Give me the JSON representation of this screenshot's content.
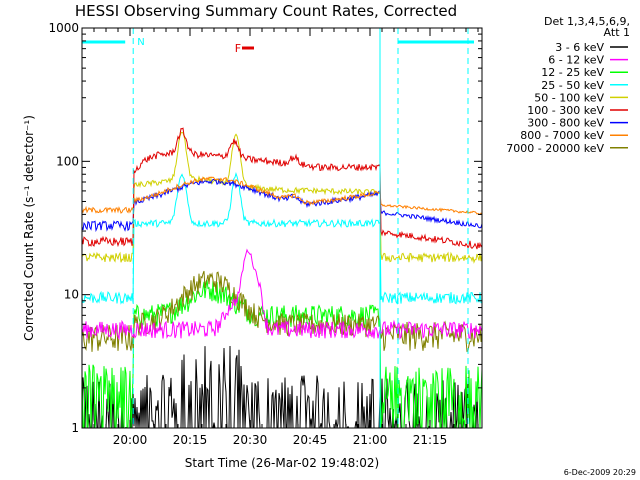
{
  "chart_data": {
    "type": "line",
    "title": "HESSI Observing Summary Count Rates, Corrected",
    "xlabel": "Start Time (26-Mar-02 19:48:02)",
    "ylabel": "Corrected Count Rate (s⁻¹ detector⁻¹)",
    "y_scale": "log",
    "ylim": [
      1,
      1000
    ],
    "xlim_minutes": [
      0,
      100
    ],
    "x_ticks": [
      {
        "t": 12,
        "label": "20:00"
      },
      {
        "t": 27,
        "label": "20:15"
      },
      {
        "t": 42,
        "label": "20:30"
      },
      {
        "t": 57,
        "label": "20:45"
      },
      {
        "t": 72,
        "label": "21:00"
      },
      {
        "t": 87,
        "label": "21:15"
      }
    ],
    "y_ticks": [
      {
        "v": 1,
        "label": "1"
      },
      {
        "v": 10,
        "label": "10"
      },
      {
        "v": 100,
        "label": "100"
      },
      {
        "v": 1000,
        "label": "1000"
      }
    ],
    "legend_header": [
      "Det 1,3,4,5,6,9,",
      "Att 1"
    ],
    "legend_position": "right",
    "series": [
      {
        "name": "3 - 6 keV",
        "color": "#000000"
      },
      {
        "name": "6 - 12 keV",
        "color": "#ff00ff"
      },
      {
        "name": "12 - 25 keV",
        "color": "#00ff00"
      },
      {
        "name": "25 - 50 keV",
        "color": "#00ffff"
      },
      {
        "name": "50 - 100 keV",
        "color": "#d0d000"
      },
      {
        "name": "100 - 300 keV",
        "color": "#e00000"
      },
      {
        "name": "300 - 800 keV",
        "color": "#0000ff"
      },
      {
        "name": "800 - 7000 keV",
        "color": "#ff8000"
      },
      {
        "name": "7000 - 20000 keV",
        "color": "#808000"
      }
    ],
    "flag_labels": {
      "N": "N",
      "F": "F"
    },
    "timestamp": "6-Dec-2009 20:29"
  }
}
